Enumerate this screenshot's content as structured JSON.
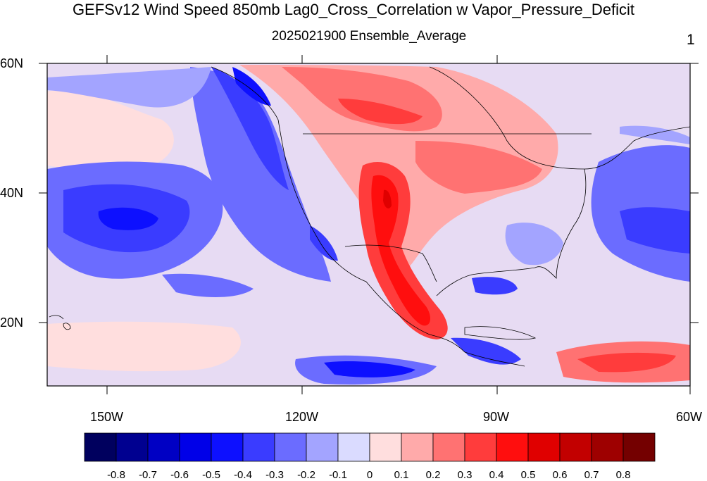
{
  "map": {
    "title": "GEFSv12 Wind Speed 850mb Lag0_Cross_Correlation w Vapor_Pressure_Deficit",
    "subtitle": "2025021900 Ensemble_Average",
    "panel_number": "1",
    "lat_labels": [
      "60N",
      "40N",
      "20N"
    ],
    "lon_labels": [
      "150W",
      "120W",
      "90W",
      "60W"
    ],
    "colors": {
      "neg_08": "#00005e",
      "neg_07": "#000090",
      "neg_06": "#0000c4",
      "neg_05": "#0000e8",
      "neg_04": "#0d10ff",
      "neg_03": "#3a3cff",
      "neg_02": "#6b6cff",
      "neg_01": "#a3a4ff",
      "neg_00": "#dadbff",
      "pos_00": "#ffdede",
      "pos_01": "#ffaaaa",
      "pos_02": "#ff7272",
      "pos_03": "#ff3c3c",
      "pos_04": "#ff0e0e",
      "pos_05": "#e00000",
      "pos_06": "#c20000",
      "pos_07": "#9e0000",
      "pos_08": "#740000"
    }
  },
  "colorbar": {
    "labels": [
      "-0.8",
      "-0.7",
      "-0.6",
      "-0.5",
      "-0.4",
      "-0.3",
      "-0.2",
      "-0.1",
      "0",
      "0.1",
      "0.2",
      "0.3",
      "0.4",
      "0.5",
      "0.6",
      "0.7",
      "0.8"
    ],
    "colors": [
      "#00005e",
      "#000090",
      "#0000c4",
      "#0000e8",
      "#0d10ff",
      "#3a3cff",
      "#6b6cff",
      "#a3a4ff",
      "#dadbff",
      "#ffdede",
      "#ffaaaa",
      "#ff7272",
      "#ff3c3c",
      "#ff0e0e",
      "#e00000",
      "#c20000",
      "#9e0000",
      "#740000"
    ]
  }
}
